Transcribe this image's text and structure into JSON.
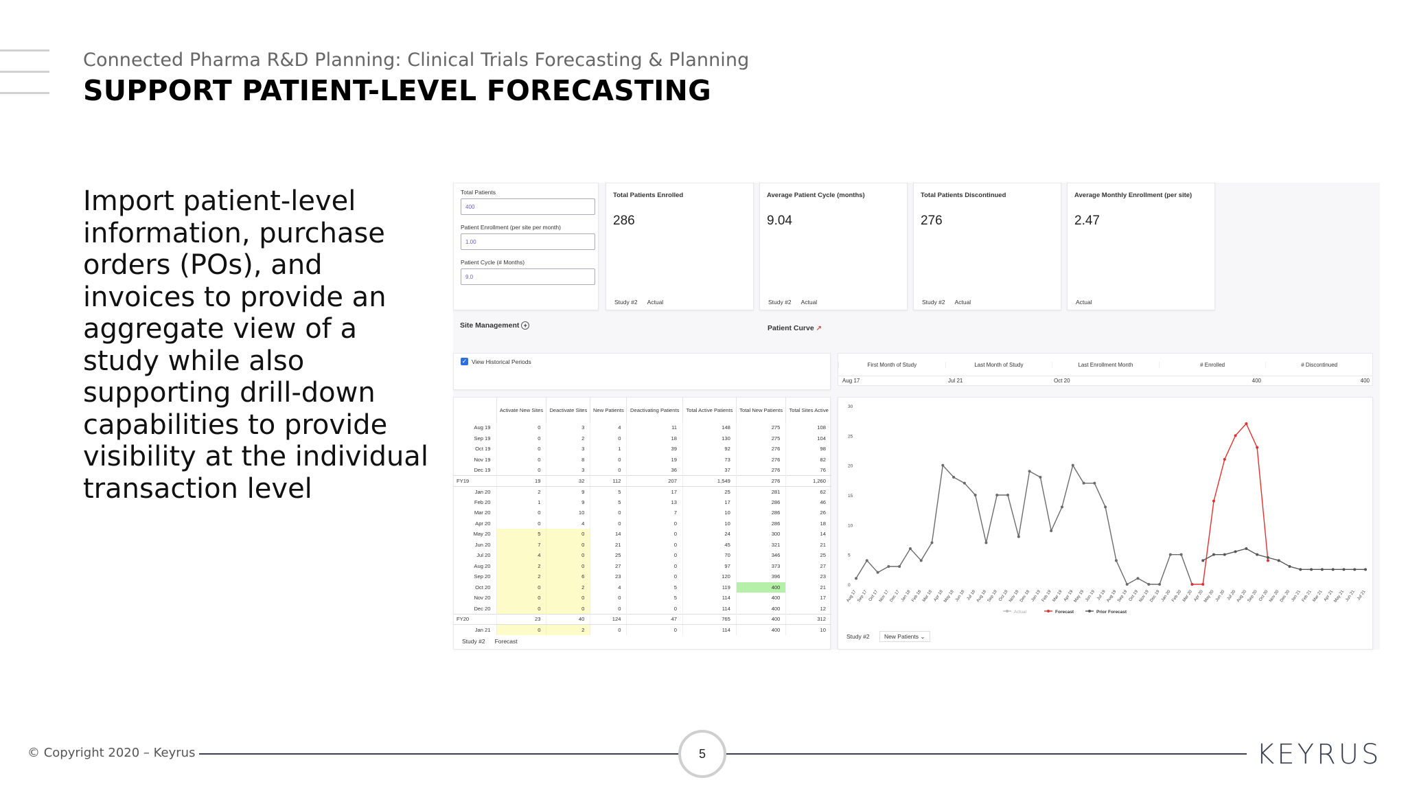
{
  "header": {
    "subtitle": "Connected Pharma R&D Planning: Clinical Trials Forecasting & Planning",
    "title": "SUPPORT PATIENT-LEVEL FORECASTING"
  },
  "body_text": "Import patient-level information, purchase orders (POs), and invoices to provide an aggregate view of a study while also supporting drill-down capabilities to provide visibility at the individual transaction level",
  "dashboard": {
    "inputs": [
      {
        "label": "Total Patients",
        "value": "400"
      },
      {
        "label": "Patient Enrollment (per site per month)",
        "value": "1.00"
      },
      {
        "label": "Patient Cycle (# Months)",
        "value": "9.0"
      }
    ],
    "kpis": [
      {
        "label": "Total Patients Enrolled",
        "value": "286",
        "foot": [
          "Study #2",
          "Actual"
        ]
      },
      {
        "label": "Average Patient Cycle (months)",
        "value": "9.04",
        "foot": [
          "Study #2",
          "Actual"
        ]
      },
      {
        "label": "Total Patients Discontinued",
        "value": "276",
        "foot": [
          "Study #2",
          "Actual"
        ]
      },
      {
        "label": "Average Monthly Enrollment (per site)",
        "value": "2.47",
        "foot": [
          "Actual"
        ]
      }
    ],
    "site_management_label": "Site Management",
    "patient_curve_label": "Patient Curve",
    "view_historical_label": "View Historical Periods",
    "summary": {
      "headers": [
        "First Month of Study",
        "Last Month of Study",
        "Last Enrollment Month",
        "# Enrolled",
        "# Discontinued"
      ],
      "values": [
        "Aug 17",
        "Jul 21",
        "Oct 20",
        "400",
        "400"
      ]
    },
    "table": {
      "headers": [
        "Activate New Sites",
        "Deactivate Sites",
        "New Patients",
        "Deactivating Patients",
        "Total Active Patients",
        "Total New Patients",
        "Total Sites Active"
      ],
      "rows": [
        {
          "label": "Aug 19",
          "cells": [
            "0",
            "3",
            "4",
            "11",
            "148",
            "275",
            "108"
          ]
        },
        {
          "label": "Sep 19",
          "cells": [
            "0",
            "2",
            "0",
            "18",
            "130",
            "275",
            "104"
          ]
        },
        {
          "label": "Oct 19",
          "cells": [
            "0",
            "3",
            "1",
            "39",
            "92",
            "276",
            "98"
          ]
        },
        {
          "label": "Nov 19",
          "cells": [
            "0",
            "8",
            "0",
            "19",
            "73",
            "276",
            "82"
          ]
        },
        {
          "label": "Dec 19",
          "cells": [
            "0",
            "3",
            "0",
            "36",
            "37",
            "276",
            "76"
          ]
        },
        {
          "label": "FY19",
          "fy": true,
          "cells": [
            "19",
            "32",
            "112",
            "207",
            "1,549",
            "276",
            "1,260"
          ]
        },
        {
          "label": "Jan 20",
          "cells": [
            "2",
            "9",
            "5",
            "17",
            "25",
            "281",
            "62"
          ]
        },
        {
          "label": "Feb 20",
          "cells": [
            "1",
            "9",
            "5",
            "13",
            "17",
            "286",
            "46"
          ]
        },
        {
          "label": "Mar 20",
          "cells": [
            "0",
            "10",
            "0",
            "7",
            "10",
            "286",
            "26"
          ]
        },
        {
          "label": "Apr 20",
          "cells": [
            "0",
            "4",
            "0",
            "0",
            "10",
            "286",
            "18"
          ]
        },
        {
          "label": "May 20",
          "hl": true,
          "cells": [
            "5",
            "0",
            "14",
            "0",
            "24",
            "300",
            "14"
          ]
        },
        {
          "label": "Jun 20",
          "hl": true,
          "cells": [
            "7",
            "0",
            "21",
            "0",
            "45",
            "321",
            "21"
          ]
        },
        {
          "label": "Jul 20",
          "hl": true,
          "cells": [
            "4",
            "0",
            "25",
            "0",
            "70",
            "346",
            "25"
          ]
        },
        {
          "label": "Aug 20",
          "hl": true,
          "cells": [
            "2",
            "0",
            "27",
            "0",
            "97",
            "373",
            "27"
          ]
        },
        {
          "label": "Sep 20",
          "hl": true,
          "cells": [
            "2",
            "6",
            "23",
            "0",
            "120",
            "396",
            "23"
          ]
        },
        {
          "label": "Oct 20",
          "hl": true,
          "green": true,
          "cells": [
            "0",
            "2",
            "4",
            "5",
            "119",
            "400",
            "21"
          ]
        },
        {
          "label": "Nov 20",
          "hl": true,
          "cells": [
            "0",
            "0",
            "0",
            "5",
            "114",
            "400",
            "17"
          ]
        },
        {
          "label": "Dec 20",
          "hl": true,
          "cells": [
            "0",
            "0",
            "0",
            "0",
            "114",
            "400",
            "12"
          ]
        },
        {
          "label": "FY20",
          "fy": true,
          "cells": [
            "23",
            "40",
            "124",
            "47",
            "765",
            "400",
            "312"
          ]
        },
        {
          "label": "Jan 21",
          "hl": true,
          "cells": [
            "0",
            "2",
            "0",
            "0",
            "114",
            "400",
            "10"
          ]
        }
      ],
      "footer": [
        "Study #2",
        "Forecast"
      ]
    },
    "chart_footer": {
      "study": "Study #2",
      "selector": "New Patients"
    }
  },
  "chart_data": {
    "type": "line",
    "x": [
      "Aug 17",
      "Sep 17",
      "Oct 17",
      "Nov 17",
      "Dec 17",
      "Jan 18",
      "Feb 18",
      "Mar 18",
      "Apr 18",
      "May 18",
      "Jun 18",
      "Jul 18",
      "Aug 18",
      "Sep 18",
      "Oct 18",
      "Nov 18",
      "Dec 18",
      "Jan 19",
      "Feb 19",
      "Mar 19",
      "Apr 19",
      "May 19",
      "Jun 19",
      "Jul 19",
      "Aug 19",
      "Sep 19",
      "Oct 19",
      "Nov 19",
      "Dec 19",
      "Jan 20",
      "Feb 20",
      "Mar 20",
      "Apr 20",
      "May 20",
      "Jun 20",
      "Jul 20",
      "Aug 20",
      "Sep 20",
      "Oct 20",
      "Nov 20",
      "Dec 20",
      "Jan 21",
      "Feb 21",
      "Mar 21",
      "Apr 21",
      "May 21",
      "Jun 21",
      "Jul 21"
    ],
    "ylim": [
      0,
      30
    ],
    "yticks": [
      0,
      5,
      10,
      15,
      20,
      25,
      30
    ],
    "legend": [
      "Actual",
      "Forecast",
      "Prior Forecast"
    ],
    "legend_position": "bottom",
    "series": [
      {
        "name": "Actual",
        "color": "#6b6b6b",
        "values": [
          1,
          4,
          2,
          3,
          3,
          6,
          4,
          7,
          20,
          18,
          17,
          15,
          7,
          15,
          15,
          8,
          19,
          18,
          9,
          13,
          20,
          17,
          17,
          13,
          4,
          0,
          1,
          0,
          0,
          5,
          5,
          0,
          null,
          null,
          null,
          null,
          null,
          null,
          null,
          null,
          null,
          null,
          null,
          null,
          null,
          null,
          null,
          null
        ]
      },
      {
        "name": "Forecast",
        "color": "#e03030",
        "values": [
          null,
          null,
          null,
          null,
          null,
          null,
          null,
          null,
          null,
          null,
          null,
          null,
          null,
          null,
          null,
          null,
          null,
          null,
          null,
          null,
          null,
          null,
          null,
          null,
          null,
          null,
          null,
          null,
          null,
          null,
          null,
          0,
          0,
          14,
          21,
          25,
          27,
          23,
          4,
          null,
          null,
          null,
          null,
          null,
          null,
          null,
          null,
          null
        ]
      },
      {
        "name": "Prior Forecast",
        "color": "#555555",
        "values": [
          null,
          null,
          null,
          null,
          null,
          null,
          null,
          null,
          null,
          null,
          null,
          null,
          null,
          null,
          null,
          null,
          null,
          null,
          null,
          null,
          null,
          null,
          null,
          null,
          null,
          null,
          null,
          null,
          null,
          null,
          null,
          null,
          4,
          5,
          5,
          5.5,
          6,
          5,
          4.5,
          4,
          3,
          2.5,
          2.5,
          2.5,
          2.5,
          2.5,
          2.5,
          2.5
        ]
      }
    ]
  },
  "footer": {
    "copyright": "© Copyright 2020 – Keyrus",
    "page": "5",
    "brand": "KEYRUS"
  }
}
